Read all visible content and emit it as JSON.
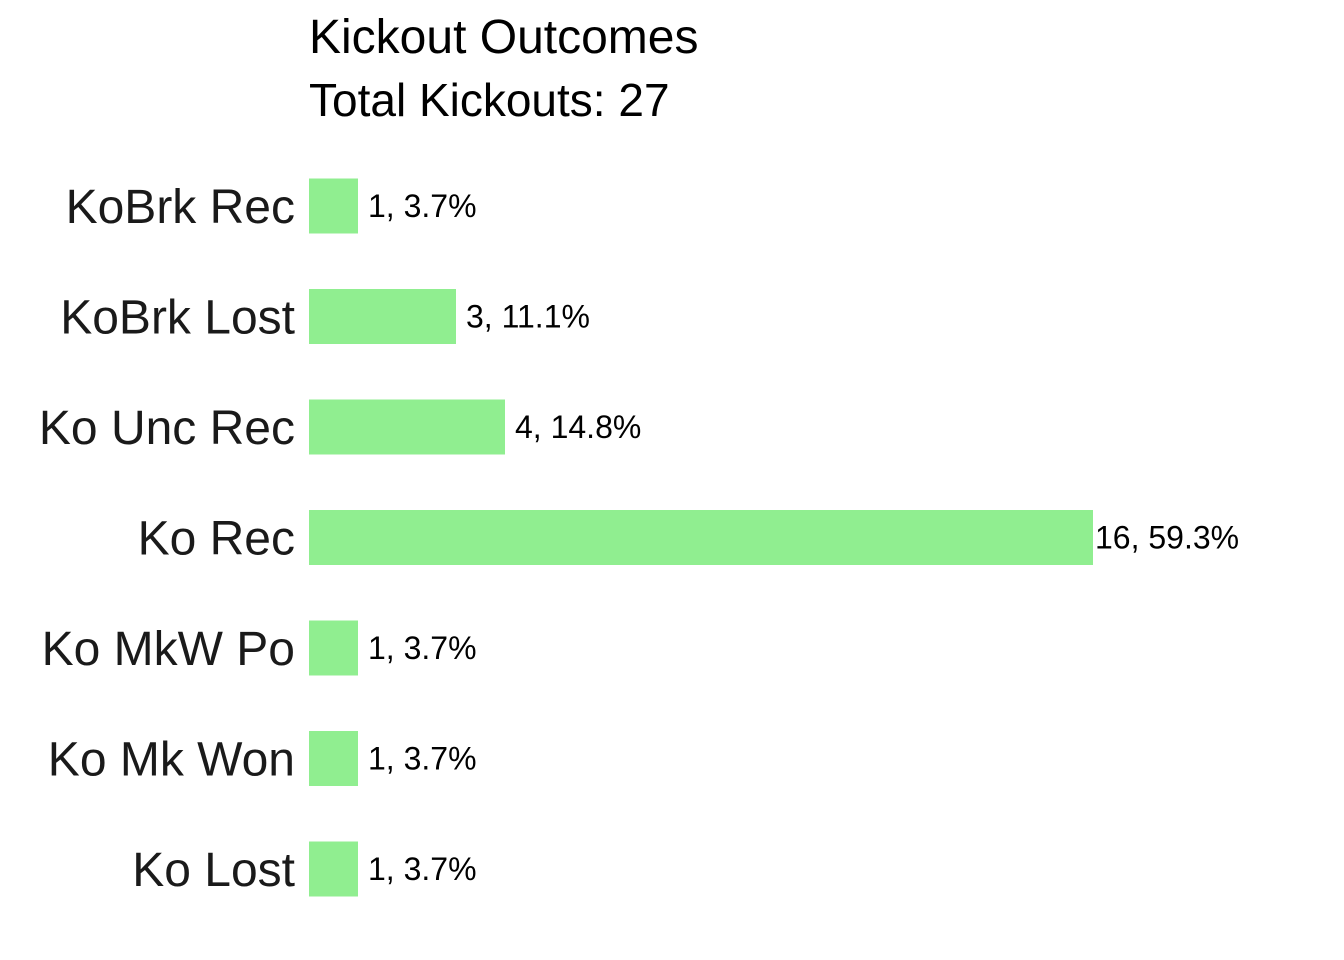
{
  "chart_data": {
    "type": "bar",
    "orientation": "horizontal",
    "title": "Kickout Outcomes",
    "subtitle": "Total Kickouts: 27",
    "categories": [
      "KoBrk Rec",
      "KoBrk Lost",
      "Ko Unc Rec",
      "Ko Rec",
      "Ko MkW Po",
      "Ko Mk Won",
      "Ko Lost"
    ],
    "values": [
      1,
      3,
      4,
      16,
      1,
      1,
      1
    ],
    "data_labels": [
      "1, 3.7%",
      "3, 11.1%",
      "4, 14.8%",
      "16, 59.3%",
      "1, 3.7%",
      "1, 3.7%",
      "1, 3.7%"
    ],
    "xlim": [
      0,
      16
    ],
    "xlabel": "",
    "ylabel": "",
    "grid": false,
    "legend": "none",
    "bar_color": "#90EE90"
  }
}
